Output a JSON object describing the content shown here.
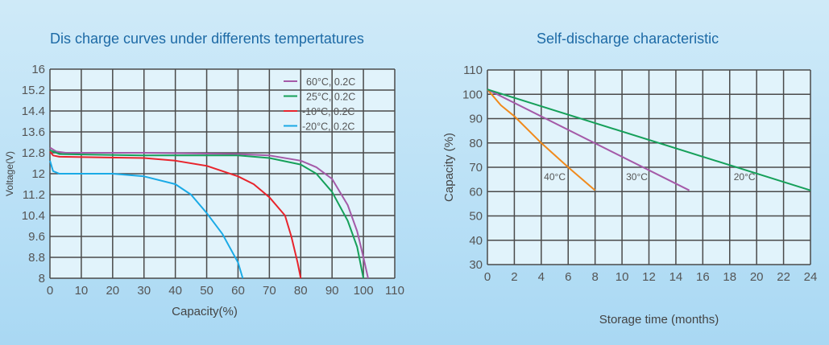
{
  "chart_data": [
    {
      "type": "line",
      "title": "Dis charge curves under differents tempertatures",
      "xlabel": "Capacity(%)",
      "ylabel": "Voltage(V)",
      "xlim": [
        0,
        110
      ],
      "ylim": [
        8,
        16
      ],
      "xticks": [
        "0",
        "10",
        "20",
        "30",
        "40",
        "50",
        "60",
        "70",
        "80",
        "90",
        "100",
        "110"
      ],
      "yticks": [
        "16",
        "15.2",
        "14.4",
        "13.6",
        "12.8",
        "12",
        "11.2",
        "10.4",
        "9.6",
        "8.8",
        "8"
      ],
      "grid": true,
      "legend": "top-right",
      "series": [
        {
          "name": "60°C, 0.2C",
          "color": "#a45aa8",
          "points": [
            [
              0,
              13.0
            ],
            [
              2,
              12.85
            ],
            [
              5,
              12.8
            ],
            [
              30,
              12.8
            ],
            [
              60,
              12.75
            ],
            [
              70,
              12.7
            ],
            [
              80,
              12.5
            ],
            [
              85,
              12.25
            ],
            [
              90,
              11.8
            ],
            [
              95,
              10.8
            ],
            [
              98,
              9.8
            ],
            [
              100,
              8.8
            ],
            [
              101.5,
              8
            ]
          ]
        },
        {
          "name": "25°C, 0.2C",
          "color": "#16a05a",
          "points": [
            [
              0,
              12.9
            ],
            [
              3,
              12.75
            ],
            [
              30,
              12.7
            ],
            [
              60,
              12.7
            ],
            [
              70,
              12.6
            ],
            [
              80,
              12.35
            ],
            [
              85,
              12.0
            ],
            [
              90,
              11.3
            ],
            [
              95,
              10.2
            ],
            [
              98,
              9.2
            ],
            [
              100,
              8
            ]
          ]
        },
        {
          "name": "-10°C, 0.2C",
          "color": "#e8242c",
          "points": [
            [
              0,
              12.85
            ],
            [
              1,
              12.7
            ],
            [
              3,
              12.65
            ],
            [
              30,
              12.6
            ],
            [
              40,
              12.5
            ],
            [
              50,
              12.3
            ],
            [
              60,
              11.9
            ],
            [
              65,
              11.6
            ],
            [
              70,
              11.1
            ],
            [
              75,
              10.4
            ],
            [
              77,
              9.6
            ],
            [
              79,
              8.6
            ],
            [
              80,
              8
            ]
          ]
        },
        {
          "name": "-20°C, 0.2C",
          "color": "#1aaae6",
          "points": [
            [
              0,
              12.5
            ],
            [
              1,
              12.1
            ],
            [
              3,
              12.0
            ],
            [
              20,
              12.0
            ],
            [
              30,
              11.9
            ],
            [
              40,
              11.6
            ],
            [
              45,
              11.2
            ],
            [
              50,
              10.5
            ],
            [
              55,
              9.7
            ],
            [
              60,
              8.6
            ],
            [
              61.5,
              8
            ]
          ]
        }
      ]
    },
    {
      "type": "line",
      "title": "Self-discharge characteristic",
      "xlabel": "Storage time (months)",
      "ylabel": "Capacity (%)",
      "xlim": [
        0,
        24
      ],
      "ylim": [
        30,
        110
      ],
      "xticks": [
        "0",
        "2",
        "4",
        "6",
        "8",
        "10",
        "12",
        "14",
        "16",
        "18",
        "20",
        "22",
        "24"
      ],
      "yticks": [
        "110",
        "100",
        "90",
        "80",
        "70",
        "60",
        "50",
        "40",
        "30"
      ],
      "grid": true,
      "legend": "inline",
      "series": [
        {
          "name": "40°C",
          "color": "#f08a1c",
          "label_at": [
            4.2,
            66
          ],
          "points": [
            [
              0,
              102
            ],
            [
              1,
              95.5
            ],
            [
              2,
              91
            ],
            [
              4,
              80
            ],
            [
              6,
              70
            ],
            [
              8,
              60.5
            ]
          ]
        },
        {
          "name": "30°C",
          "color": "#a45aa8",
          "label_at": [
            10.3,
            66
          ],
          "points": [
            [
              0,
              102
            ],
            [
              15,
              60.5
            ]
          ]
        },
        {
          "name": "20°C",
          "color": "#16a05a",
          "label_at": [
            18.3,
            66
          ],
          "points": [
            [
              0,
              102
            ],
            [
              24,
              60.5
            ]
          ]
        }
      ]
    }
  ]
}
